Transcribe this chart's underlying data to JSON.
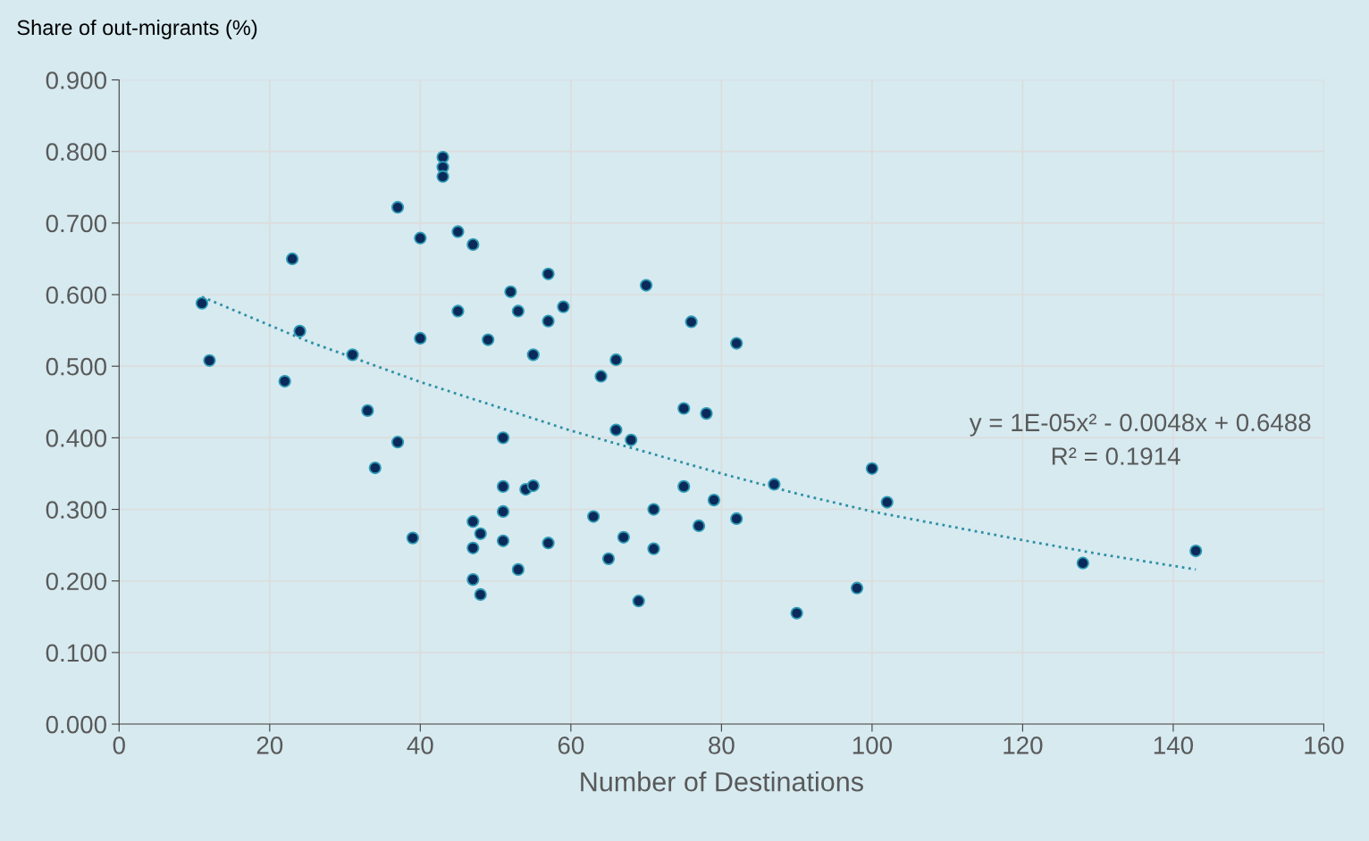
{
  "chart_data": {
    "type": "scatter",
    "ylabel": "Share of out-migrants (%)",
    "xlabel": "Number of Destinations",
    "xlim": [
      0,
      160
    ],
    "xticks": [
      0,
      20,
      40,
      60,
      80,
      100,
      120,
      140,
      160
    ],
    "ylim": [
      0,
      0.9
    ],
    "yticks": [
      {
        "value": 0,
        "label": "0.000"
      },
      {
        "value": 0.1,
        "label": "0.100"
      },
      {
        "value": 0.2,
        "label": "0.200"
      },
      {
        "value": 0.3,
        "label": "0.300"
      },
      {
        "value": 0.4,
        "label": "0.400"
      },
      {
        "value": 0.5,
        "label": "0.500"
      },
      {
        "value": 0.6,
        "label": "0.600"
      },
      {
        "value": 0.7,
        "label": "0.700"
      },
      {
        "value": 0.8,
        "label": "0.800"
      },
      {
        "value": 0.9,
        "label": "0.900"
      }
    ],
    "grid": true,
    "legend": false,
    "marker": "circle",
    "series": [
      {
        "color": "#0b2a5a",
        "x": [
          11,
          12,
          23,
          24,
          22,
          31,
          33,
          34,
          37,
          37,
          39,
          40,
          40,
          43,
          43,
          43,
          45,
          45,
          47,
          47,
          47,
          47,
          48,
          48,
          49,
          51,
          51,
          51,
          51,
          52,
          53,
          53,
          54,
          55,
          55,
          57,
          57,
          57,
          59,
          63,
          64,
          65,
          66,
          66,
          67,
          68,
          69,
          70,
          71,
          71,
          75,
          75,
          76,
          77,
          78,
          79,
          82,
          82,
          87,
          90,
          98,
          100,
          102,
          128,
          143
        ],
        "values": [
          0.588,
          0.508,
          0.65,
          0.549,
          0.479,
          0.516,
          0.438,
          0.358,
          0.722,
          0.394,
          0.26,
          0.679,
          0.539,
          0.792,
          0.778,
          0.765,
          0.688,
          0.577,
          0.67,
          0.283,
          0.246,
          0.202,
          0.266,
          0.181,
          0.537,
          0.4,
          0.332,
          0.297,
          0.256,
          0.604,
          0.577,
          0.216,
          0.328,
          0.333,
          0.516,
          0.629,
          0.563,
          0.253,
          0.583,
          0.29,
          0.486,
          0.231,
          0.509,
          0.411,
          0.261,
          0.397,
          0.172,
          0.613,
          0.3,
          0.245,
          0.441,
          0.332,
          0.562,
          0.277,
          0.434,
          0.313,
          0.532,
          0.287,
          0.335,
          0.155,
          0.19,
          0.357,
          0.31,
          0.225,
          0.242
        ]
      },
      {
        "type": "line",
        "color": "#2e8fa5",
        "line_style": "dotted",
        "marker": "none",
        "x": [
          11,
          25,
          40,
          60,
          80,
          90,
          100,
          120,
          130,
          143
        ],
        "values": [
          0.597,
          0.535,
          0.478,
          0.41,
          0.35,
          0.322,
          0.297,
          0.257,
          0.238,
          0.216
        ]
      }
    ],
    "annotations": [
      "y = 1E-05x² - 0.0048x + 0.6488",
      "R² = 0.1914"
    ]
  }
}
